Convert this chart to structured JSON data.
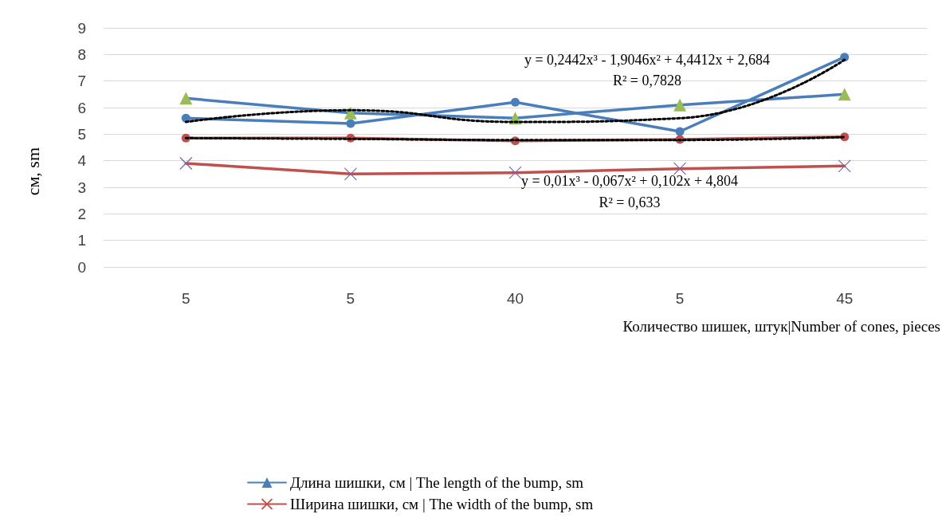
{
  "chart_data": {
    "type": "line",
    "ylabel": "см, sm",
    "xlabel": "Количество шишек, штук|Number of cones, pieces",
    "categories": [
      "5",
      "5",
      "40",
      "5",
      "45"
    ],
    "ylim": [
      0,
      9
    ],
    "yticks": [
      0,
      1,
      2,
      3,
      4,
      5,
      6,
      7,
      8,
      9
    ],
    "grid": "y",
    "legend": "bottom left",
    "series": [
      {
        "color": "#4a7ebb",
        "marker": "circle",
        "values": [
          5.6,
          5.4,
          6.2,
          5.1,
          7.9
        ]
      },
      {
        "name": "Длина шишки, см | The length of the bump, sm",
        "color": "#4a7ebb",
        "colors": [
          "#9bbb59",
          "#9bbb59",
          "#9bbb59",
          "#9bbb59",
          "#9bbb59"
        ],
        "marker": "triangle",
        "values": [
          6.35,
          5.8,
          5.6,
          6.1,
          6.5
        ]
      },
      {
        "color": "#c0504d",
        "marker": "circle",
        "values": [
          4.85,
          4.85,
          4.75,
          4.8,
          4.9
        ]
      },
      {
        "name": "Ширина шишки, см | The width of the bump, sm",
        "color": "#c0504d",
        "colors": [
          "#8064a2",
          "#8064a2",
          "#8064a2",
          "#8064a2",
          "#8064a2"
        ],
        "marker": "cross",
        "values": [
          3.9,
          3.5,
          3.55,
          3.7,
          3.8
        ]
      },
      {
        "color": "#000000",
        "marker": "none",
        "line_style": "dotted",
        "values": [
          5.46,
          5.9,
          5.46,
          5.6,
          7.8
        ]
      },
      {
        "color": "#000000",
        "marker": "none",
        "line_style": "dotted",
        "values": [
          4.85,
          4.82,
          4.78,
          4.78,
          4.89
        ]
      }
    ],
    "annotations": [
      "y = 0,2442x³ - 1,9046x² + 4,4412x + 2,684",
      "R² = 0,7828",
      "y = 0,01x³ - 0,067x² + 0,102x + 4,804",
      "R² = 0,633"
    ]
  }
}
